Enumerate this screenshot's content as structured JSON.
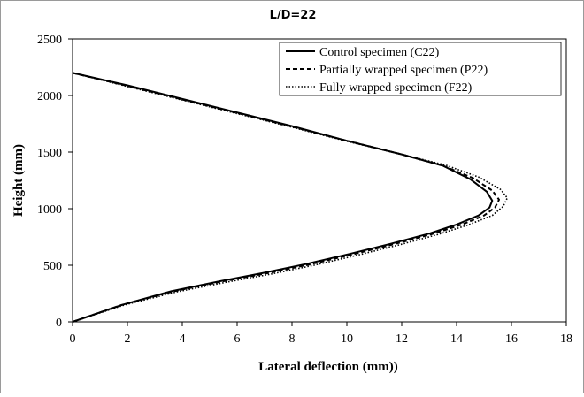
{
  "chart_data": {
    "type": "line",
    "title": "L/D=22",
    "xlabel": "Lateral deflection (mm))",
    "ylabel": "Height (mm)",
    "xlim": [
      0,
      18
    ],
    "ylim": [
      0,
      2500
    ],
    "xticks": [
      0,
      2,
      4,
      6,
      8,
      10,
      12,
      14,
      16,
      18
    ],
    "yticks": [
      0,
      500,
      1000,
      1500,
      2000,
      2500
    ],
    "grid": false,
    "legend_position": "top-right",
    "series": [
      {
        "name": "Control specimen (C22)",
        "style": "solid",
        "color": "#000000",
        "points": [
          [
            0,
            0
          ],
          [
            1.8,
            150
          ],
          [
            3.6,
            270
          ],
          [
            5.4,
            360
          ],
          [
            6.9,
            430
          ],
          [
            8.5,
            510
          ],
          [
            10.1,
            600
          ],
          [
            11.6,
            690
          ],
          [
            13.0,
            780
          ],
          [
            14.0,
            860
          ],
          [
            14.8,
            940
          ],
          [
            15.2,
            1010
          ],
          [
            15.3,
            1070
          ],
          [
            15.1,
            1150
          ],
          [
            14.5,
            1260
          ],
          [
            13.5,
            1380
          ],
          [
            12.0,
            1480
          ],
          [
            10.0,
            1600
          ],
          [
            8.0,
            1730
          ],
          [
            6.0,
            1850
          ],
          [
            4.0,
            1970
          ],
          [
            2.0,
            2090
          ],
          [
            0,
            2200
          ]
        ]
      },
      {
        "name": "Partially wrapped specimen (P22)",
        "style": "dashed",
        "color": "#000000",
        "points": [
          [
            0,
            0
          ],
          [
            1.8,
            150
          ],
          [
            3.6,
            265
          ],
          [
            5.4,
            355
          ],
          [
            7.0,
            425
          ],
          [
            8.6,
            505
          ],
          [
            10.2,
            595
          ],
          [
            11.7,
            685
          ],
          [
            13.1,
            775
          ],
          [
            14.2,
            860
          ],
          [
            15.0,
            940
          ],
          [
            15.4,
            1010
          ],
          [
            15.55,
            1080
          ],
          [
            15.3,
            1160
          ],
          [
            14.6,
            1270
          ],
          [
            13.5,
            1380
          ],
          [
            12.0,
            1480
          ],
          [
            10.0,
            1600
          ],
          [
            8.0,
            1725
          ],
          [
            6.0,
            1845
          ],
          [
            4.0,
            1965
          ],
          [
            2.0,
            2085
          ],
          [
            0,
            2200
          ]
        ]
      },
      {
        "name": "Fully wrapped specimen (F22)",
        "style": "dotted",
        "color": "#000000",
        "points": [
          [
            0,
            0
          ],
          [
            1.9,
            150
          ],
          [
            3.8,
            265
          ],
          [
            5.6,
            350
          ],
          [
            7.2,
            420
          ],
          [
            8.8,
            500
          ],
          [
            10.4,
            590
          ],
          [
            11.9,
            680
          ],
          [
            13.3,
            770
          ],
          [
            14.4,
            855
          ],
          [
            15.3,
            940
          ],
          [
            15.7,
            1020
          ],
          [
            15.85,
            1095
          ],
          [
            15.6,
            1170
          ],
          [
            14.8,
            1280
          ],
          [
            13.6,
            1385
          ],
          [
            12.0,
            1480
          ],
          [
            10.0,
            1595
          ],
          [
            8.0,
            1720
          ],
          [
            6.0,
            1840
          ],
          [
            4.0,
            1960
          ],
          [
            2.0,
            2080
          ],
          [
            0,
            2200
          ]
        ]
      }
    ]
  }
}
